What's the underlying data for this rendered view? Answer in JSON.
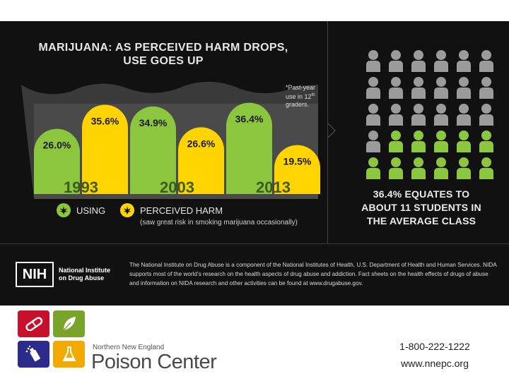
{
  "title_line1": "MARIJUANA: AS PERCEIVED HARM DROPS,",
  "title_line2": "USE GOES UP",
  "note": "*Past-year use in 12th graders.",
  "note_line1": "*Past-year",
  "note_line2": "use in 12",
  "note_sup": "th",
  "note_line3": "graders.",
  "legend": {
    "using": "USING",
    "harm": "PERCEIVED HARM",
    "harm_sub": "(saw great risk in smoking marijuana occasionally)"
  },
  "colors": {
    "using": "#8cc63f",
    "harm": "#ffd400",
    "background": "#111111",
    "cloud": "#3a3a3a",
    "person_grey": "#9b9b9b",
    "person_green": "#8cc63f",
    "year_label": "#3d5c1a"
  },
  "chart_data": {
    "type": "bar",
    "categories": [
      "1993",
      "2003",
      "2013"
    ],
    "series": [
      {
        "name": "USING",
        "values": [
          26.0,
          34.9,
          36.4
        ],
        "labels": [
          "26.0%",
          "34.9%",
          "36.4%"
        ]
      },
      {
        "name": "PERCEIVED HARM",
        "values": [
          35.6,
          26.6,
          19.5
        ],
        "labels": [
          "35.6%",
          "26.6%",
          "19.5%"
        ]
      }
    ],
    "ylim": [
      0,
      45
    ]
  },
  "people": {
    "total": 30,
    "highlighted": 11,
    "columns": 6,
    "highlight_from": "bottom-right"
  },
  "summary_line1": "36.4% EQUATES TO",
  "summary_line2": "ABOUT 11 STUDENTS IN",
  "summary_line3": "THE AVERAGE CLASS",
  "nih": {
    "mark": "NIH",
    "name_line1": "National Institute",
    "name_line2": "on Drug Abuse",
    "text": "The National Institute on Drug Abuse is a component of the National Institutes of Health, U.S. Department of Health and Human Services. NIDA supports most of the world’s research on the health aspects of drug abuse and addiction. Fact sheets on the health effects of drugs of abuse and information on NIDA research and other activities can be found at www.drugabuse.gov."
  },
  "poison_center": {
    "small": "Northern New England",
    "big": "Poison Center",
    "tile_colors": [
      "#c8102e",
      "#7aa32b",
      "#2c2a8c",
      "#f2a900"
    ]
  },
  "contact": {
    "phone": "1-800-222-1222",
    "web": "www.nnepc.org"
  }
}
